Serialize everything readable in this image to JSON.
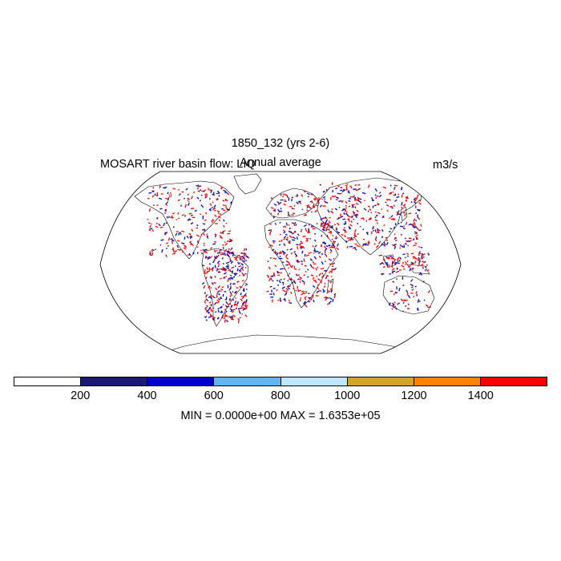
{
  "header": {
    "main_title": "1850_132 (yrs 2-6)",
    "left_title": "MOSART river basin flow: LIQ",
    "center_title": "Annual average",
    "units": "m3/s"
  },
  "colorbar": {
    "colors": [
      "#ffffff",
      "#1a1a75",
      "#0000cd",
      "#63b4f0",
      "#bde7ff",
      "#d2a52a",
      "#ff8200",
      "#ff0000"
    ],
    "labels": [
      "200",
      "400",
      "600",
      "800",
      "1000",
      "1200",
      "1400"
    ]
  },
  "stats": {
    "text": "MIN = 0.0000e+00 MAX = 1.6353e+05"
  },
  "map": {
    "projection": "Robinson",
    "coastline_color": "#000000",
    "river_colors": [
      "#ff0000",
      "#0000cd",
      "#1a1a75"
    ]
  }
}
